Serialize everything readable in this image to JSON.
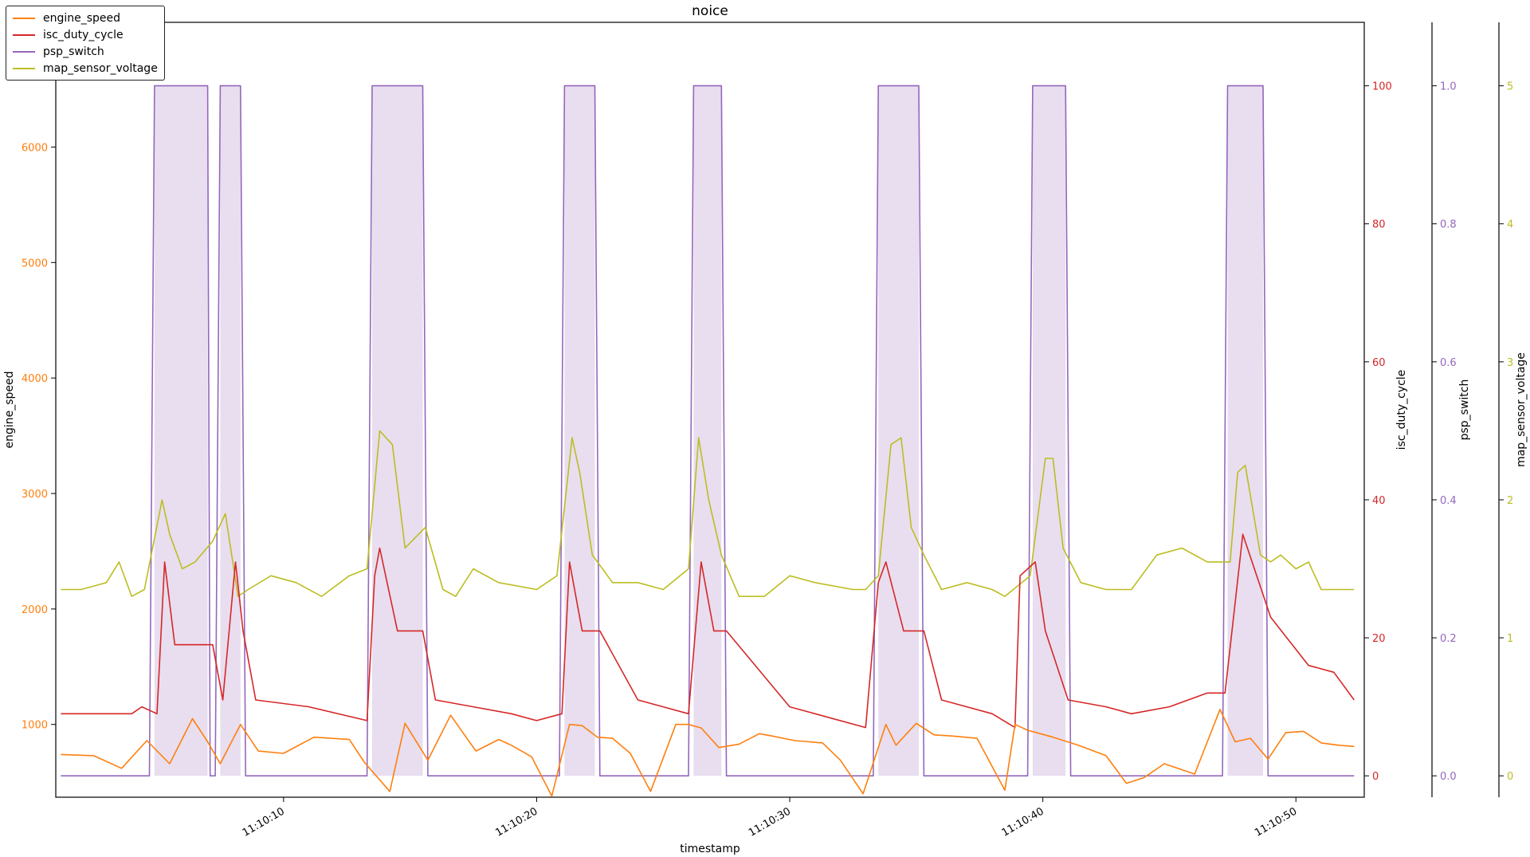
{
  "chart_data": {
    "type": "line",
    "title": "noice",
    "xlabel": "timestamp",
    "x_start": "11:10:01.0",
    "x_end": "11:10:52.7",
    "x_ticks": [
      "11:10:10",
      "11:10:20",
      "11:10:30",
      "11:10:40",
      "11:10:50"
    ],
    "legend_position": "top-left",
    "grid": false,
    "axes": [
      {
        "id": "engine_speed",
        "label": "engine_speed",
        "side": "left",
        "color": "#ff7f0e",
        "ylim": [
          370,
          7080
        ],
        "ticks": [
          1000,
          2000,
          3000,
          4000,
          5000,
          6000
        ]
      },
      {
        "id": "isc_duty_cycle",
        "label": "isc_duty_cycle",
        "side": "right",
        "color": "#d62728",
        "ylim": [
          -3.1,
          109.2
        ],
        "ticks": [
          0,
          20,
          40,
          60,
          80,
          100
        ]
      },
      {
        "id": "psp_switch",
        "label": "psp_switch",
        "side": "right",
        "color": "#9467bd",
        "ylim": [
          -0.031,
          1.092
        ],
        "ticks": [
          "0.0",
          "0.2",
          "0.4",
          "0.6",
          "0.8",
          "1.0"
        ]
      },
      {
        "id": "map_sensor_voltage",
        "label": "map_sensor_voltage",
        "side": "right",
        "color": "#bcbd22",
        "ylim": [
          -0.155,
          5.46
        ],
        "ticks": [
          0,
          1,
          2,
          3,
          4,
          5
        ]
      }
    ],
    "series": [
      {
        "name": "engine_speed",
        "axis": "engine_speed",
        "color": "#ff7f0e",
        "x": [
          1.2,
          2.5,
          3.6,
          4.6,
          5.5,
          6.4,
          7.0,
          7.5,
          8.3,
          9.0,
          10.0,
          11.2,
          12.6,
          13.2,
          14.2,
          14.8,
          15.7,
          16.6,
          17.6,
          18.5,
          19.0,
          19.8,
          20.6,
          21.3,
          21.8,
          22.4,
          23.0,
          23.7,
          24.5,
          25.5,
          26.0,
          26.5,
          27.2,
          28.0,
          28.8,
          29.3,
          30.2,
          31.3,
          32.0,
          32.9,
          33.8,
          34.2,
          35.0,
          35.7,
          36.4,
          37.4,
          38.5,
          38.9,
          39.4,
          39.9,
          40.4,
          41.4,
          42.5,
          43.3,
          44.0,
          44.8,
          46.0,
          47.0,
          47.6,
          48.2,
          48.9,
          49.6,
          50.3,
          51.0,
          51.7,
          52.3
        ],
        "values": [
          740,
          730,
          620,
          860,
          660,
          1050,
          850,
          660,
          1000,
          770,
          750,
          890,
          870,
          670,
          420,
          1010,
          690,
          1080,
          770,
          870,
          820,
          720,
          380,
          1000,
          990,
          890,
          880,
          750,
          420,
          1000,
          1000,
          970,
          800,
          830,
          920,
          900,
          860,
          840,
          690,
          400,
          1000,
          820,
          1010,
          910,
          900,
          880,
          430,
          1000,
          950,
          920,
          890,
          820,
          730,
          490,
          540,
          660,
          570,
          1130,
          850,
          880,
          700,
          930,
          940,
          840,
          820,
          810
        ]
      },
      {
        "name": "isc_duty_cycle",
        "axis": "isc_duty_cycle",
        "color": "#d62728",
        "x": [
          1.2,
          4.0,
          4.4,
          5.0,
          5.3,
          5.7,
          7.2,
          7.6,
          8.1,
          8.4,
          8.9,
          11.0,
          13.3,
          13.6,
          13.8,
          14.5,
          15.5,
          16.0,
          17.5,
          19.0,
          20.0,
          21.0,
          21.3,
          21.8,
          22.5,
          24.0,
          26.0,
          26.5,
          27.0,
          27.5,
          30.0,
          31.0,
          33.0,
          33.5,
          33.8,
          34.5,
          35.3,
          36.0,
          38.0,
          38.9,
          39.1,
          39.7,
          40.1,
          41.0,
          42.5,
          43.5,
          45.0,
          46.5,
          47.2,
          47.9,
          49.0,
          50.5,
          51.5,
          52.3
        ],
        "values": [
          9,
          9,
          10,
          9,
          31,
          19,
          19,
          11,
          31,
          21,
          11,
          10,
          8,
          29,
          33,
          21,
          21,
          11,
          10,
          9,
          8,
          9,
          31,
          21,
          21,
          11,
          9,
          31,
          21,
          21,
          10,
          9,
          7,
          28,
          31,
          21,
          21,
          11,
          9,
          7,
          29,
          31,
          21,
          11,
          10,
          9,
          10,
          12,
          12,
          35,
          23,
          16,
          15,
          11
        ]
      },
      {
        "name": "psp_switch",
        "axis": "psp_switch",
        "color": "#9467bd",
        "x": [
          1.2,
          4.7,
          4.9,
          7.0,
          7.1,
          7.3,
          7.5,
          8.3,
          8.5,
          13.3,
          13.5,
          15.5,
          15.7,
          20.9,
          21.1,
          22.3,
          22.5,
          26.0,
          26.2,
          27.3,
          27.5,
          33.3,
          33.5,
          35.1,
          35.3,
          39.4,
          39.6,
          40.9,
          41.1,
          47.1,
          47.3,
          48.7,
          48.9,
          52.3
        ],
        "values": [
          0,
          0,
          1,
          1,
          0,
          0,
          1,
          1,
          0,
          0,
          1,
          1,
          0,
          0,
          1,
          1,
          0,
          0,
          1,
          1,
          0,
          0,
          1,
          1,
          0,
          0,
          1,
          1,
          0,
          0,
          1,
          1,
          0,
          0
        ]
      },
      {
        "name": "map_sensor_voltage",
        "axis": "map_sensor_voltage",
        "color": "#bcbd22",
        "x": [
          1.2,
          2.0,
          3.0,
          3.5,
          4.0,
          4.5,
          5.2,
          5.5,
          6.0,
          6.5,
          7.2,
          7.7,
          8.2,
          8.6,
          9.5,
          10.5,
          11.5,
          12.6,
          13.3,
          13.8,
          14.3,
          14.8,
          15.6,
          16.3,
          16.8,
          17.5,
          18.5,
          20.0,
          20.8,
          21.4,
          21.7,
          22.2,
          23.0,
          24.0,
          25.0,
          26.0,
          26.4,
          26.8,
          27.3,
          28.0,
          29.0,
          30.0,
          31.0,
          32.5,
          33.0,
          33.5,
          34.0,
          34.4,
          34.8,
          35.3,
          36.0,
          37.0,
          38.0,
          38.5,
          39.5,
          40.1,
          40.4,
          40.8,
          41.5,
          42.5,
          43.5,
          44.5,
          45.5,
          46.5,
          47.4,
          47.7,
          48.0,
          48.6,
          49.0,
          49.4,
          50.0,
          50.5,
          51.0,
          52.3
        ],
        "values": [
          1.35,
          1.35,
          1.4,
          1.55,
          1.3,
          1.35,
          2.0,
          1.75,
          1.5,
          1.55,
          1.7,
          1.9,
          1.3,
          1.35,
          1.45,
          1.4,
          1.3,
          1.45,
          1.5,
          2.5,
          2.4,
          1.65,
          1.8,
          1.35,
          1.3,
          1.5,
          1.4,
          1.35,
          1.45,
          2.45,
          2.2,
          1.6,
          1.4,
          1.4,
          1.35,
          1.5,
          2.45,
          2.0,
          1.6,
          1.3,
          1.3,
          1.45,
          1.4,
          1.35,
          1.35,
          1.45,
          2.4,
          2.45,
          1.8,
          1.6,
          1.35,
          1.4,
          1.35,
          1.3,
          1.45,
          2.3,
          2.3,
          1.65,
          1.4,
          1.35,
          1.35,
          1.6,
          1.65,
          1.55,
          1.55,
          2.2,
          2.25,
          1.6,
          1.55,
          1.6,
          1.5,
          1.55,
          1.35,
          1.35
        ]
      }
    ]
  }
}
